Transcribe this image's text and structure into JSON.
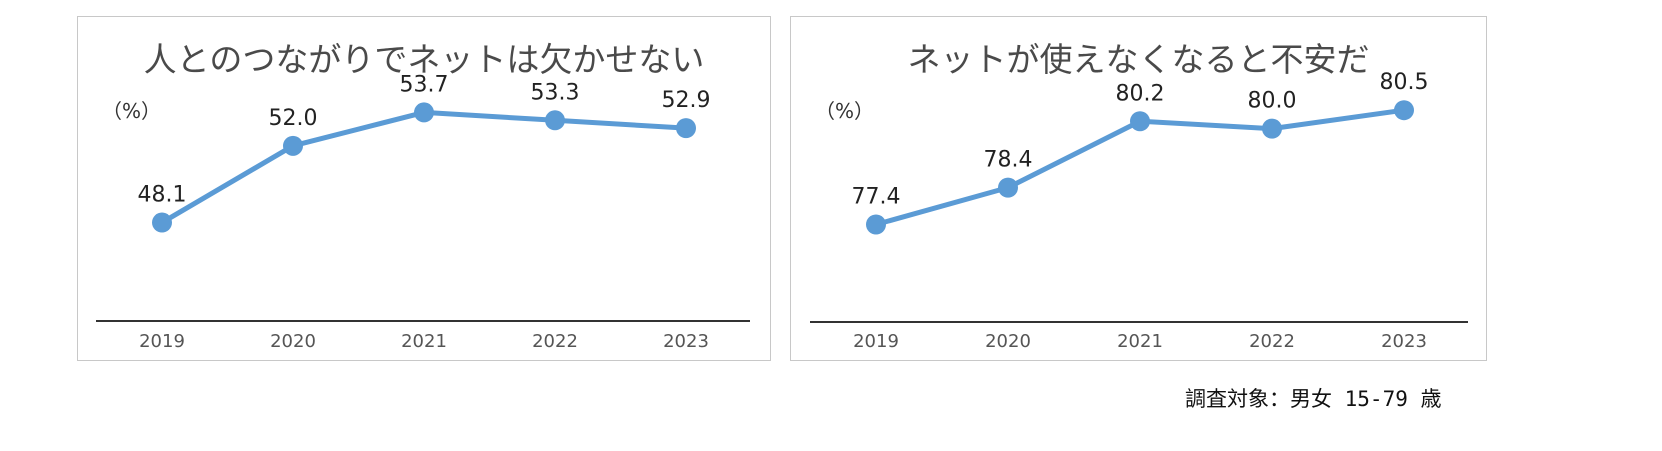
{
  "chart_data": [
    {
      "type": "line",
      "title": "人とのつながりでネットは欠かせない",
      "unit_label": "（%）",
      "categories": [
        "2019",
        "2020",
        "2021",
        "2022",
        "2023"
      ],
      "values": [
        48.1,
        52.0,
        53.7,
        53.3,
        52.9
      ],
      "value_labels": [
        "48.1",
        "52.0",
        "53.7",
        "53.3",
        "52.9"
      ],
      "ylim": [
        43.5,
        55.5
      ],
      "grid": false,
      "legend": "none",
      "color": "#5b9bd5"
    },
    {
      "type": "line",
      "title": "ネットが使えなくなると不安だ",
      "unit_label": "（%）",
      "categories": [
        "2019",
        "2020",
        "2021",
        "2022",
        "2023"
      ],
      "values": [
        77.4,
        78.4,
        80.2,
        80.0,
        80.5
      ],
      "value_labels": [
        "77.4",
        "78.4",
        "80.2",
        "80.0",
        "80.5"
      ],
      "ylim": [
        75.0,
        81.4
      ],
      "grid": false,
      "legend": "none",
      "color": "#5b9bd5"
    }
  ],
  "footnote": "調査対象：男女 15-79 歳"
}
